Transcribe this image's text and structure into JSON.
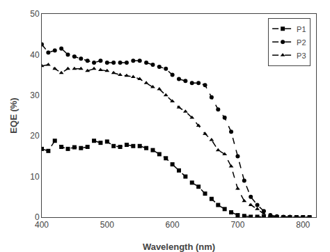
{
  "chart_data": {
    "type": "line",
    "xlabel": "Wavelength (nm)",
    "ylabel": "EQE (%)",
    "x": [
      400,
      410,
      420,
      430,
      440,
      450,
      460,
      470,
      480,
      490,
      500,
      510,
      520,
      530,
      540,
      550,
      560,
      570,
      580,
      590,
      600,
      610,
      620,
      630,
      640,
      650,
      660,
      670,
      680,
      690,
      700,
      710,
      720,
      730,
      740,
      750,
      760,
      770,
      780,
      790,
      800,
      810
    ],
    "series": [
      {
        "name": "P1",
        "color": "#000000",
        "marker": "square",
        "line_style": "dashed",
        "values": [
          16.8,
          16.3,
          18.8,
          17.3,
          16.8,
          17.2,
          17.0,
          17.3,
          18.8,
          18.3,
          18.6,
          17.5,
          17.3,
          17.8,
          17.5,
          17.5,
          17.0,
          16.5,
          15.5,
          14.5,
          13.0,
          11.5,
          10.0,
          8.5,
          7.5,
          5.8,
          4.5,
          3.0,
          2.0,
          1.2,
          0.5,
          0.3,
          0.1,
          0.1,
          0.0,
          0.0,
          0.0,
          0.0,
          0.0,
          0.0,
          0.0,
          0.0
        ]
      },
      {
        "name": "P2",
        "color": "#000000",
        "marker": "circle",
        "line_style": "dashed",
        "values": [
          42.5,
          40.5,
          41.0,
          41.5,
          40.0,
          39.5,
          39.0,
          38.5,
          38.0,
          38.5,
          38.0,
          38.0,
          38.0,
          38.0,
          38.5,
          38.5,
          38.0,
          37.5,
          37.0,
          36.5,
          35.0,
          34.0,
          33.5,
          33.0,
          33.0,
          32.5,
          29.5,
          26.5,
          24.5,
          21.0,
          15.0,
          9.0,
          5.0,
          3.0,
          1.5,
          0.5,
          0.2,
          0.1,
          0.1,
          0.0,
          0.0,
          0.0
        ]
      },
      {
        "name": "P3",
        "color": "#000000",
        "marker": "triangle-up",
        "line_style": "dashed",
        "values": [
          37.2,
          37.5,
          36.5,
          35.5,
          36.5,
          36.5,
          36.5,
          36.0,
          36.5,
          36.2,
          36.0,
          35.5,
          35.0,
          34.8,
          34.5,
          34.0,
          33.0,
          32.0,
          31.5,
          30.0,
          28.5,
          27.0,
          26.0,
          24.5,
          22.5,
          20.5,
          19.0,
          16.5,
          15.5,
          12.5,
          7.0,
          4.0,
          3.0,
          2.0,
          0.8,
          0.2,
          0.1,
          0.0,
          0.0,
          0.0,
          0.0,
          0.0
        ]
      }
    ],
    "xlim": [
      400,
      820
    ],
    "ylim": [
      0,
      50
    ],
    "xticks": [
      400,
      500,
      600,
      700,
      800
    ],
    "yticks": [
      0,
      10,
      20,
      30,
      40,
      50
    ],
    "grid": false,
    "legend": "upper right"
  }
}
